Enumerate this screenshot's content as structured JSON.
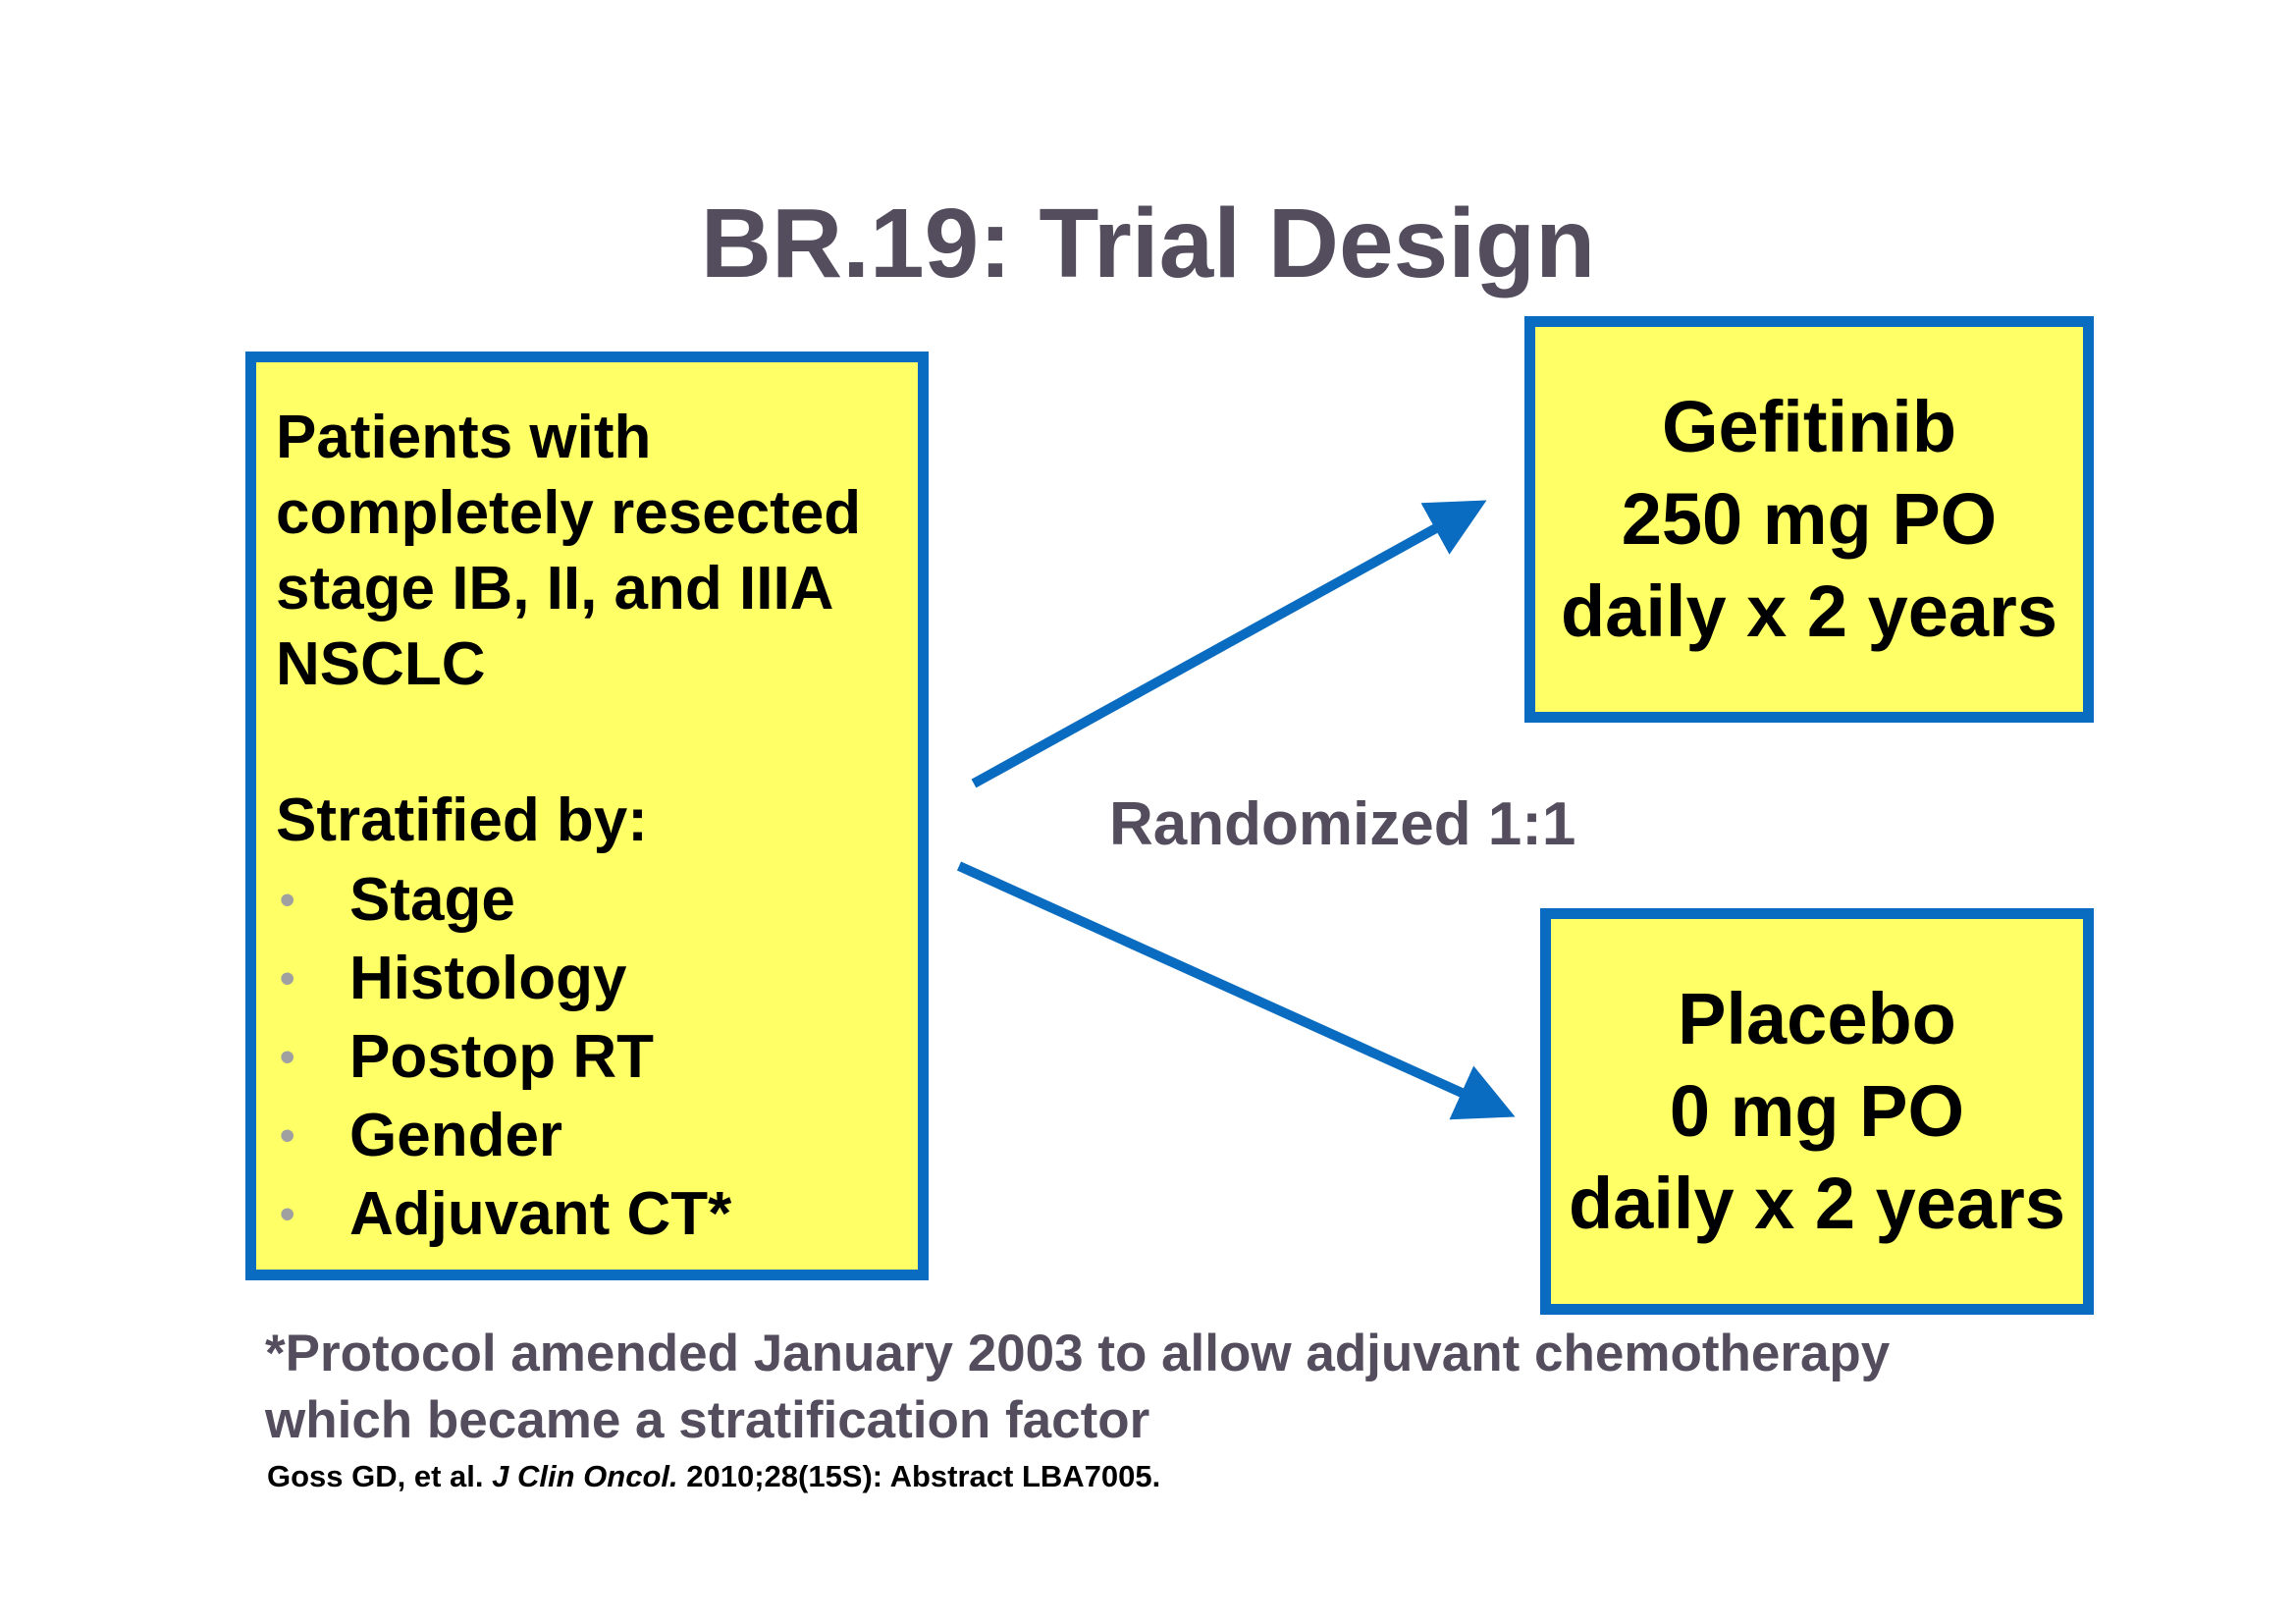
{
  "title": "BR.19: Trial Design",
  "patients_box": {
    "lines": [
      "Patients with",
      "completely resected",
      "stage IB, II, and IIIA",
      "NSCLC"
    ],
    "stratified_label": "Stratified by:",
    "bullets": [
      "Stage",
      "Histology",
      "Postop RT",
      "Gender",
      "Adjuvant CT*"
    ]
  },
  "randomization_label": "Randomized 1:1",
  "arms": [
    {
      "lines": [
        "Gefitinib",
        "250 mg PO",
        "daily x 2 years"
      ]
    },
    {
      "lines": [
        "Placebo",
        "0 mg PO",
        "daily x 2 years"
      ]
    }
  ],
  "footnote": {
    "line1": "*Protocol amended January 2003 to allow adjuvant chemotherapy",
    "line2": "which became a stratification factor"
  },
  "citation": {
    "authors": "Goss GD, et al.",
    "journal": "J Clin Oncol.",
    "details": "2010;28(15S): Abstract LBA7005."
  },
  "colors": {
    "box_fill": "#ffff66",
    "box_border": "#0a6cc0",
    "arrow": "#0a6cc0",
    "title_text": "#544d5e",
    "bullet": "#a0a0a0"
  }
}
